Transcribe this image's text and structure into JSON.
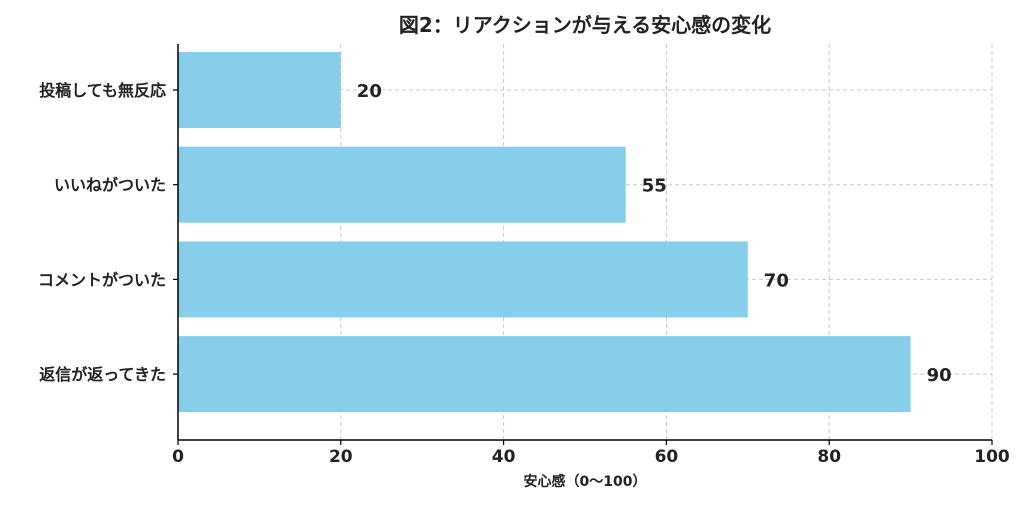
{
  "chart_data": {
    "type": "bar",
    "orientation": "horizontal",
    "title": "図2：リアクションが与える安心感の変化",
    "xlabel": "安心感（0〜100）",
    "ylabel": "",
    "categories": [
      "投稿しても無反応",
      "いいねがついた",
      "コメントがついた",
      "返信が返ってきた"
    ],
    "values": [
      20,
      55,
      70,
      90
    ],
    "xlim": [
      0,
      100
    ],
    "xticks": [
      0,
      20,
      40,
      60,
      80,
      100
    ],
    "grid": true,
    "bar_color": "#87CEEB",
    "data_labels": true
  }
}
